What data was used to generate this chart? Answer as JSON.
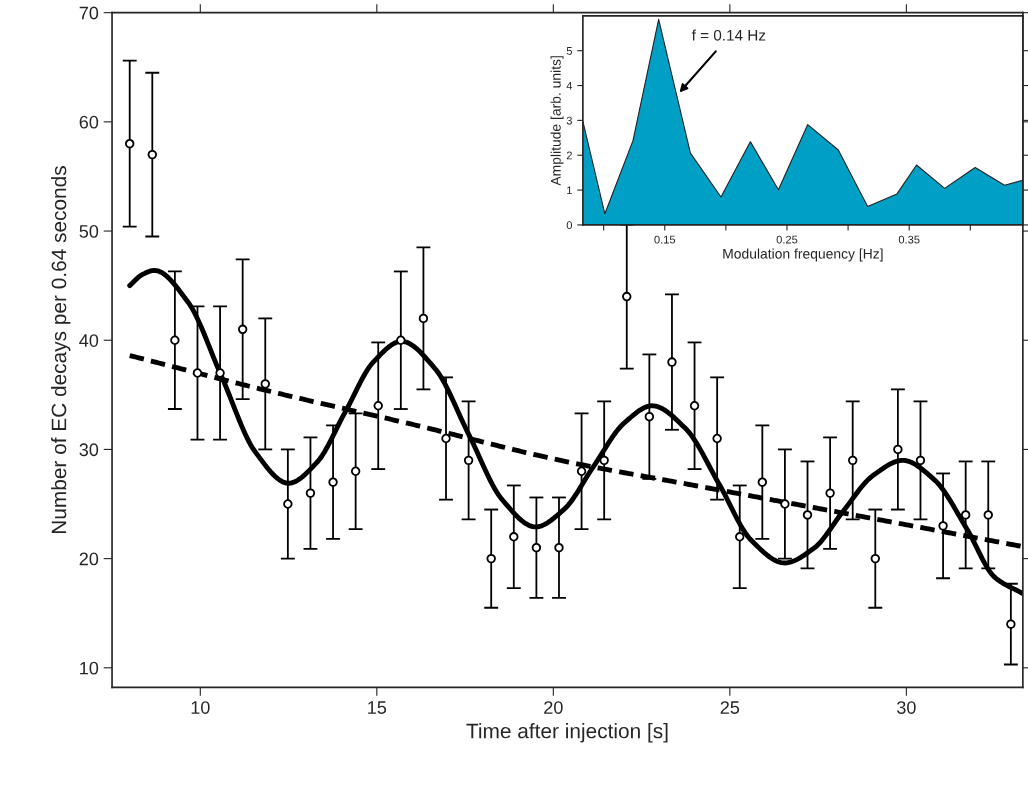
{
  "chart_data": [
    {
      "type": "scatter",
      "xlabel": "Time after injection [s]",
      "ylabel": "Number of EC decays per 0.64 seconds",
      "xlim": [
        7.5,
        33.3
      ],
      "ylim": [
        8.2,
        70
      ],
      "xticks": [
        10,
        15,
        20,
        25,
        30
      ],
      "yticks": [
        10,
        20,
        30,
        40,
        50,
        60,
        70
      ],
      "grid": false,
      "legend": false,
      "series": [
        {
          "type": "scatter",
          "color": "#000000",
          "marker": "circle",
          "x": [
            8.0,
            8.64,
            9.28,
            9.92,
            10.56,
            11.2,
            11.84,
            12.48,
            13.12,
            13.76,
            14.4,
            15.04,
            15.68,
            16.32,
            16.96,
            17.6,
            18.24,
            18.88,
            19.52,
            20.16,
            20.8,
            21.44,
            22.08,
            22.72,
            23.36,
            24.0,
            24.64,
            25.28,
            25.92,
            26.56,
            27.2,
            27.84,
            28.48,
            29.12,
            29.76,
            30.4,
            31.04,
            31.68,
            32.32,
            32.96
          ],
          "values": [
            58,
            57,
            40,
            37,
            37,
            41,
            36,
            25,
            26,
            27,
            28,
            34,
            40,
            42,
            31,
            29,
            20,
            22,
            21,
            21,
            28,
            29,
            44,
            33,
            38,
            34,
            31,
            22,
            27,
            25,
            24,
            26,
            29,
            20,
            30,
            29,
            23,
            24,
            24,
            14
          ],
          "errors": [
            7.6,
            7.5,
            6.3,
            6.1,
            6.1,
            6.4,
            6.0,
            5.0,
            5.1,
            5.2,
            5.3,
            5.8,
            6.3,
            6.5,
            5.6,
            5.4,
            4.5,
            4.7,
            4.6,
            4.6,
            5.3,
            5.4,
            6.6,
            5.7,
            6.2,
            5.8,
            5.6,
            4.7,
            5.2,
            5.0,
            4.9,
            5.1,
            5.4,
            4.5,
            5.5,
            5.4,
            4.8,
            4.9,
            4.9,
            3.7
          ]
        },
        {
          "type": "line",
          "color": "#000000",
          "line_style": "solid",
          "x": [
            8.0,
            8.35,
            8.7,
            9.65,
            10.6,
            11.55,
            12.5,
            13.3,
            14.1,
            14.9,
            15.7,
            16.65,
            17.6,
            18.55,
            19.5,
            20.3,
            21.15,
            22.0,
            22.8,
            23.75,
            24.7,
            25.6,
            26.55,
            27.4,
            28.2,
            29.05,
            29.9,
            30.8,
            31.7,
            32.5,
            33.3
          ],
          "values": [
            45.0,
            46.0,
            46.4,
            43.5,
            36.7,
            29.8,
            26.9,
            28.8,
            33.4,
            38.0,
            39.9,
            37.4,
            31.4,
            25.4,
            22.9,
            24.5,
            28.5,
            32.4,
            34.0,
            31.9,
            26.8,
            21.7,
            19.6,
            21.0,
            24.3,
            27.6,
            29.0,
            27.2,
            22.8,
            18.3,
            16.8
          ]
        },
        {
          "type": "line",
          "color": "#000000",
          "line_style": "dashed",
          "x": [
            8.0,
            12.0,
            16.0,
            20.2,
            24.0,
            27.0,
            30.0,
            33.3
          ],
          "values": [
            38.6,
            35.3,
            32.3,
            29.0,
            26.7,
            24.9,
            23.1,
            21.1
          ]
        }
      ]
    },
    {
      "type": "area",
      "xlabel": "Modulation frequency [Hz]",
      "ylabel": "Amplitude [arb. units]",
      "xlim": [
        0.083,
        0.443
      ],
      "ylim": [
        0,
        6
      ],
      "xticks": [
        {
          "value": 0.1,
          "label": null
        },
        0.15,
        {
          "value": 0.2,
          "label": null
        },
        0.25,
        {
          "value": 0.3,
          "label": null
        },
        0.35,
        {
          "value": 0.4,
          "label": null
        }
      ],
      "yticks": [
        0,
        1,
        2,
        3,
        4,
        5
      ],
      "grid": false,
      "legend": false,
      "annotations": [
        {
          "text": "f = 0.14 Hz",
          "x": 0.162,
          "y": 3.8
        }
      ],
      "series": [
        {
          "color": "#00a0c6",
          "x": [
            0.083,
            0.101,
            0.124,
            0.145,
            0.171,
            0.196,
            0.22,
            0.243,
            0.267,
            0.292,
            0.316,
            0.34,
            0.356,
            0.379,
            0.404,
            0.428,
            0.443
          ],
          "values": [
            2.97,
            0.32,
            2.42,
            5.9,
            2.06,
            0.8,
            2.39,
            1.01,
            2.88,
            2.15,
            0.53,
            0.89,
            1.72,
            1.05,
            1.65,
            1.14,
            1.28
          ]
        }
      ]
    }
  ]
}
